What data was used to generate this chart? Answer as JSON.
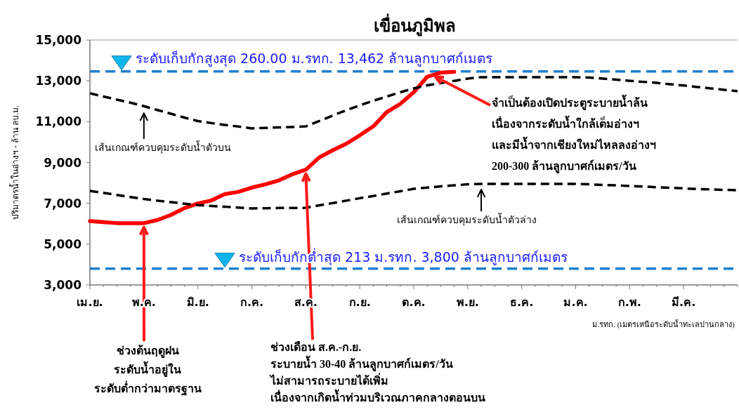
{
  "chart_data": {
    "type": "line",
    "title": "เขื่อนภูมิพล",
    "ylabel": "ปริมาตรน้ำในอ่างฯ - ล้าน ลบ.ม.",
    "categories": [
      "เม.ย.",
      null,
      null,
      null,
      "พ.ค.",
      null,
      null,
      null,
      "มิ.ย.",
      null,
      null,
      null,
      "ก.ค.",
      null,
      null,
      null,
      "ส.ค.",
      null,
      null,
      null,
      "ก.ย.",
      null,
      null,
      null,
      "ต.ค.",
      null,
      null,
      null,
      "พ.ย.",
      null,
      null,
      null,
      "ธ.ค.",
      null,
      null,
      null,
      "ม.ค.",
      null,
      null,
      null,
      "ก.พ.",
      null,
      null,
      null,
      "มี.ค.",
      null,
      null,
      null,
      null
    ],
    "ylim": [
      3000,
      15000
    ],
    "yticks": [
      {
        "value": 3000,
        "label": "3,000"
      },
      {
        "value": 5000,
        "label": "5,000"
      },
      {
        "value": 7000,
        "label": "7,000"
      },
      {
        "value": 9000,
        "label": "9,000"
      },
      {
        "value": 11000,
        "label": "11,000"
      },
      {
        "value": 13000,
        "label": "13,000"
      },
      {
        "value": 15000,
        "label": "15,000"
      }
    ],
    "grid": false,
    "legend": false,
    "series": [
      {
        "color": "#ff0000",
        "line_style": "solid",
        "values": [
          6130,
          6080,
          6030,
          6030,
          6030,
          6180,
          6430,
          6760,
          6990,
          7140,
          7450,
          7560,
          7770,
          7930,
          8120,
          8420,
          8650,
          9250,
          9600,
          9920,
          10330,
          10770,
          11470,
          11870,
          12440,
          13200,
          13400,
          13440,
          null,
          null,
          null,
          null,
          null,
          null,
          null,
          null,
          null,
          null,
          null,
          null,
          null,
          null,
          null,
          null,
          null,
          null,
          null,
          null,
          null
        ]
      },
      {
        "name": "เส้นเกณฑ์ควบคุมระดับน้ำตัวบน",
        "color": "#000000",
        "line_style": "dashed",
        "values": [
          12390,
          12230,
          12080,
          11930,
          11760,
          11570,
          11390,
          11200,
          11030,
          10930,
          10840,
          10760,
          10670,
          10690,
          10720,
          10740,
          10770,
          11030,
          11300,
          11560,
          11800,
          12020,
          12230,
          12440,
          12630,
          12780,
          12890,
          13000,
          13110,
          13180,
          13180,
          13180,
          13180,
          13180,
          13180,
          13180,
          13180,
          13160,
          13110,
          13060,
          13000,
          12950,
          12900,
          12830,
          12770,
          12700,
          12630,
          12560,
          12490
        ]
      },
      {
        "name": "เส้นเกณฑ์ควบคุมระดับน้ำตัวล่าง",
        "color": "#000000",
        "line_style": "dashed",
        "values": [
          7610,
          7510,
          7410,
          7310,
          7210,
          7130,
          7060,
          6980,
          6910,
          6870,
          6830,
          6790,
          6750,
          6760,
          6770,
          6770,
          6780,
          6900,
          7010,
          7130,
          7250,
          7360,
          7480,
          7590,
          7710,
          7770,
          7830,
          7880,
          7930,
          7950,
          7950,
          7950,
          7950,
          7950,
          7950,
          7950,
          7950,
          7930,
          7900,
          7880,
          7850,
          7820,
          7790,
          7760,
          7730,
          7700,
          7680,
          7660,
          7640
        ]
      }
    ],
    "ref_lines": [
      {
        "axis": "y",
        "value": 13462,
        "label": "ระดับเก็บกักสูงสุด 260.00 ม.รทก. 13,462 ล้านลูกบาศก์เมตร",
        "color": "#1f7fd0",
        "line_style": "dashed"
      },
      {
        "axis": "y",
        "value": 3800,
        "label": "ระดับเก็บกักต่ำสุด 213 ม.รทก. 3,800 ล้านลูกบาศก์เมตร",
        "color": "#1f7fd0",
        "line_style": "dashed"
      }
    ],
    "annotations": [
      {
        "text": "ช่วงต้นฤดูฝน\nระดับน้ำอยู่ใน\nระดับต่ำกว่ามาตรฐาน",
        "x": "พ.ค.",
        "y": 6030
      },
      {
        "text": "ช่วงเดือน ส.ค.-ก.ย.\nระบายน้ำ  30-40 ล้านลูกบาศก์เมตร/วัน\nไม่สามารถระบายได้เพิ่ม\nเนื่องจากเกิดน้ำท่วมบริเวณภาคกลางตอนบน",
        "x": "ส.ค.",
        "y": 8650
      },
      {
        "text": "จำเป็นต้องเปิดประตูระบายน้ำล้น\nเนื่องจากระดับน้ำใกล้เต็มอ่างฯ\nและมีน้ำจากเชียงใหม่ไหลลงอ่างฯ\n200-300 ล้านลูกบาศก์เมตร/วัน",
        "y": 13400
      },
      "ม.รทก. (เมตรเหนือระดับน้ำทะเลปานกลาง)"
    ]
  }
}
